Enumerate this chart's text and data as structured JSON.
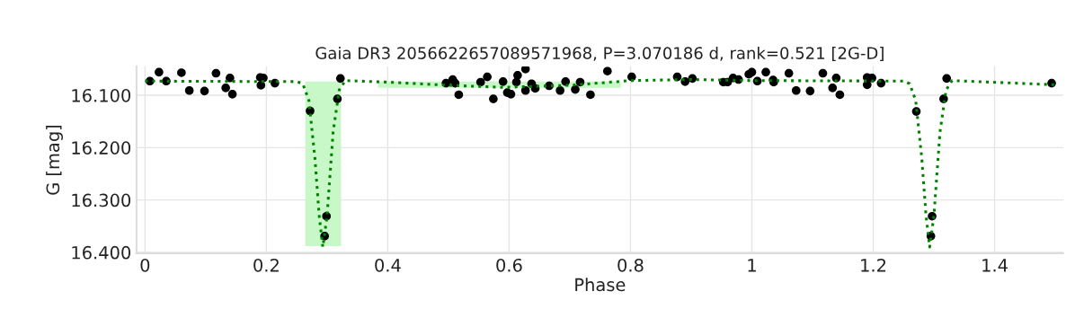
{
  "chart_data": {
    "type": "scatter",
    "title": "Gaia DR3 2056622657089571968, P=3.070186 d, rank=0.521 [2G-D]",
    "xlabel": "Phase",
    "ylabel": "G [mag]",
    "xlim": [
      -0.014,
      1.513
    ],
    "ylim": [
      16.402,
      16.045
    ],
    "xticks": [
      0,
      0.2,
      0.4,
      0.6,
      0.8,
      1,
      1.2,
      1.4
    ],
    "yticks": [
      {
        "value": 16.1,
        "label": "16.100"
      },
      {
        "value": 16.2,
        "label": "16.200"
      },
      {
        "value": 16.3,
        "label": "16.300"
      },
      {
        "value": 16.4,
        "label": "16.400"
      }
    ],
    "grid": true,
    "legend": false,
    "series": [
      {
        "type": "area",
        "color": "#c8f8c8",
        "x": [
          0.264,
          0.323,
          0.323,
          0.264
        ],
        "values": [
          16.074,
          16.074,
          16.388,
          16.388
        ]
      },
      {
        "type": "area",
        "color": "#c8f8c8",
        "x": [
          0.384,
          0.784,
          0.784,
          0.384
        ],
        "values": [
          16.074,
          16.074,
          16.086,
          16.086
        ]
      },
      {
        "type": "line",
        "color": "#008000",
        "line_style": "dotted",
        "marker": "none",
        "x": [
          0,
          0.25,
          0.26,
          0.27,
          0.28,
          0.287,
          0.293,
          0.3,
          0.31,
          0.32,
          0.33,
          0.4,
          0.5,
          0.59,
          0.7,
          0.8,
          0.9,
          1.0,
          1.25,
          1.26,
          1.27,
          1.28,
          1.287,
          1.293,
          1.3,
          1.31,
          1.32,
          1.33,
          1.5
        ],
        "values": [
          16.073,
          16.074,
          16.078,
          16.11,
          16.22,
          16.33,
          16.39,
          16.33,
          16.17,
          16.09,
          16.072,
          16.075,
          16.081,
          16.085,
          16.081,
          16.072,
          16.07,
          16.072,
          16.073,
          16.078,
          16.11,
          16.22,
          16.33,
          16.39,
          16.33,
          16.17,
          16.09,
          16.072,
          16.08
        ]
      },
      {
        "color": "#000000",
        "marker": "circle",
        "x": [
          0.008,
          0.023,
          0.035,
          0.06,
          0.073,
          0.098,
          0.117,
          0.133,
          0.14,
          0.144,
          0.19,
          0.191,
          0.195,
          0.214,
          0.272,
          0.296,
          0.299,
          0.317,
          0.322,
          0.496,
          0.507,
          0.511,
          0.517,
          0.553,
          0.564,
          0.574,
          0.59,
          0.597,
          0.603,
          0.612,
          0.614,
          0.627,
          0.627,
          0.637,
          0.643,
          0.666,
          0.684,
          0.693,
          0.709,
          0.717,
          0.734,
          0.762,
          0.802,
          0.877,
          0.89,
          0.902,
          0.953,
          0.96,
          0.969,
          0.978,
          0.995,
          1.0,
          1.009,
          1.023,
          1.035,
          1.036,
          1.061,
          1.073,
          1.096,
          1.117,
          1.133,
          1.139,
          1.145,
          1.19,
          1.19,
          1.198,
          1.213,
          1.271,
          1.295,
          1.297,
          1.316,
          1.321,
          1.494
        ],
        "values": [
          16.073,
          16.056,
          16.073,
          16.057,
          16.091,
          16.092,
          16.058,
          16.086,
          16.067,
          16.098,
          16.066,
          16.081,
          16.067,
          16.077,
          16.13,
          16.369,
          16.331,
          16.107,
          16.068,
          16.077,
          16.07,
          16.077,
          16.099,
          16.075,
          16.065,
          16.107,
          16.074,
          16.095,
          16.098,
          16.075,
          16.062,
          16.05,
          16.091,
          16.078,
          16.087,
          16.082,
          16.091,
          16.074,
          16.089,
          16.075,
          16.099,
          16.054,
          16.065,
          16.065,
          16.074,
          16.068,
          16.075,
          16.075,
          16.067,
          16.07,
          16.06,
          16.056,
          16.073,
          16.056,
          16.071,
          16.075,
          16.058,
          16.091,
          16.092,
          16.058,
          16.086,
          16.067,
          16.099,
          16.066,
          16.08,
          16.067,
          16.077,
          16.131,
          16.369,
          16.331,
          16.107,
          16.068,
          16.077
        ]
      }
    ]
  }
}
